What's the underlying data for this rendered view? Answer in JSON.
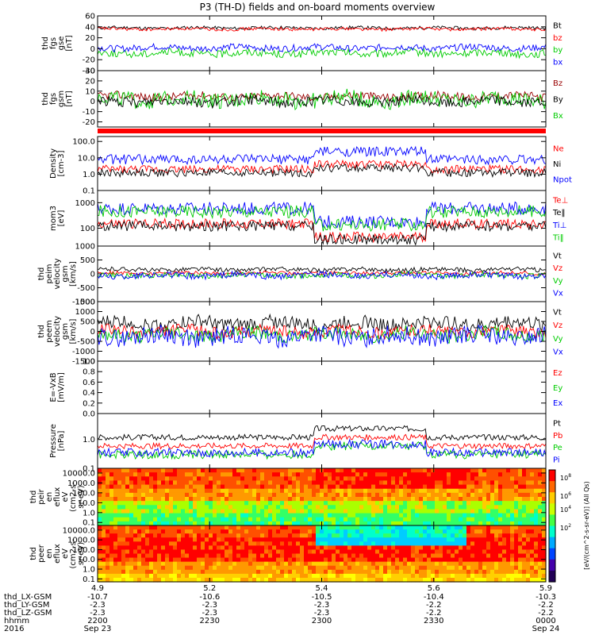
{
  "title": "P3 (TH-D) fields and on-board moments overview",
  "colors": {
    "black": "#000000",
    "red": "#ff0000",
    "green": "#00cc00",
    "blue": "#0000ff",
    "statusbar": "#ff0000"
  },
  "time_axis": {
    "xlim": [
      0,
      120
    ],
    "unit": "minutes after 2016-09-23 22:00"
  },
  "chart_data": [
    {
      "id": "p1",
      "type": "line",
      "ylabel": [
        "thd",
        "fgs",
        "gse",
        "[nT]"
      ],
      "ylim": [
        -40,
        60
      ],
      "yticks": [
        "60",
        "40",
        "20",
        "0",
        "-20",
        "-40"
      ],
      "ytick_vals": [
        60,
        40,
        20,
        0,
        -20,
        -40
      ],
      "series": [
        {
          "name": "Bt",
          "color": "#000000",
          "base": 38,
          "amp": 3
        },
        {
          "name": "bz",
          "color": "#ff0000",
          "base": 36,
          "amp": 3
        },
        {
          "name": "by",
          "color": "#00cc00",
          "base": -8,
          "amp": 7
        },
        {
          "name": "bx",
          "color": "#0000ff",
          "base": 2,
          "amp": 6
        }
      ],
      "legend": [
        "Bt",
        "bz",
        "by",
        "bx"
      ]
    },
    {
      "id": "p2",
      "type": "line",
      "ylabel": [
        "thd",
        "fgs",
        "gsm",
        "[nT]"
      ],
      "ylim": [
        -25,
        30
      ],
      "yticks": [
        "30",
        "20",
        "10",
        "0",
        "-10",
        "-20"
      ],
      "ytick_vals": [
        30,
        20,
        10,
        0,
        -10,
        -20
      ],
      "series": [
        {
          "name": "Bz",
          "color": "#990000",
          "base": 5,
          "amp": 4
        },
        {
          "name": "Bx",
          "color": "#00cc00",
          "base": 2,
          "amp": 8
        },
        {
          "name": "By",
          "color": "#000000",
          "base": 0,
          "amp": 5
        }
      ],
      "legend": [
        "Bz",
        "By",
        "Bx"
      ]
    },
    {
      "id": "p4",
      "type": "line",
      "ylabel": [
        "Density",
        "[cm-3]"
      ],
      "scale": "log",
      "ylim": [
        0.1,
        200
      ],
      "yticks": [
        "100.0",
        "10.0",
        "1.0",
        "0.1"
      ],
      "ytick_vals": [
        100,
        10,
        1,
        0.1
      ],
      "series": [
        {
          "name": "Ne",
          "color": "#ff0000",
          "base": 2,
          "amp": 0.25
        },
        {
          "name": "Ni",
          "color": "#000000",
          "base": 1.2,
          "amp": 0.25
        },
        {
          "name": "Npot",
          "color": "#0000ff",
          "base": 8,
          "amp": 0.3
        }
      ],
      "legend": [
        "Ne",
        "Ni",
        "Npot"
      ]
    },
    {
      "id": "p5",
      "type": "line",
      "ylabel": [
        "mom3",
        "[eV]"
      ],
      "scale": "log",
      "ylim": [
        20,
        3000
      ],
      "yticks": [
        "1000",
        "100"
      ],
      "ytick_vals": [
        1000,
        100
      ],
      "series": [
        {
          "name": "Te⊥",
          "color": "#ff0000",
          "base": 150,
          "amp": 0.2
        },
        {
          "name": "Te‖",
          "color": "#000000",
          "base": 120,
          "amp": 0.2
        },
        {
          "name": "Ti⊥",
          "color": "#0000ff",
          "base": 600,
          "amp": 0.25
        },
        {
          "name": "Ti‖",
          "color": "#00cc00",
          "base": 450,
          "amp": 0.25
        }
      ],
      "legend": [
        "Te⊥",
        "Te‖",
        "Ti⊥",
        "Ti‖"
      ]
    },
    {
      "id": "p6",
      "type": "line",
      "ylabel": [
        "thd",
        "peim",
        "velocity",
        "gsm",
        "[km/s]"
      ],
      "ylim": [
        -1000,
        1000
      ],
      "yticks": [
        "1000",
        "500",
        "0",
        "-500",
        "-1000"
      ],
      "ytick_vals": [
        1000,
        500,
        0,
        -500,
        -1000
      ],
      "series": [
        {
          "name": "Vt",
          "color": "#000000",
          "base": 150,
          "amp": 80
        },
        {
          "name": "Vz",
          "color": "#ff0000",
          "base": 30,
          "amp": 60
        },
        {
          "name": "Vy",
          "color": "#00cc00",
          "base": -50,
          "amp": 100
        },
        {
          "name": "Vx",
          "color": "#0000ff",
          "base": -60,
          "amp": 120
        }
      ],
      "legend": [
        "Vt",
        "Vz",
        "Vy",
        "Vx"
      ]
    },
    {
      "id": "p7",
      "type": "line",
      "ylabel": [
        "thd",
        "peem",
        "velocity",
        "gsm",
        "[km/s]"
      ],
      "ylim": [
        -1500,
        1500
      ],
      "yticks": [
        "1500",
        "1000",
        "500",
        "0",
        "-500",
        "-1000",
        "-1500"
      ],
      "ytick_vals": [
        1500,
        1000,
        500,
        0,
        -500,
        -1000,
        -1500
      ],
      "series": [
        {
          "name": "Vt",
          "color": "#000000",
          "base": 400,
          "amp": 350
        },
        {
          "name": "Vz",
          "color": "#ff0000",
          "base": 0,
          "amp": 300
        },
        {
          "name": "Vy",
          "color": "#00cc00",
          "base": -150,
          "amp": 350
        },
        {
          "name": "Vx",
          "color": "#0000ff",
          "base": -250,
          "amp": 450
        }
      ],
      "legend": [
        "Vt",
        "Vz",
        "Vy",
        "Vx"
      ]
    },
    {
      "id": "p8",
      "type": "line",
      "ylabel": [
        "E=-VxB",
        "[mV/m]"
      ],
      "ylim": [
        0,
        1
      ],
      "yticks": [
        "1.0",
        "0.8",
        "0.6",
        "0.4",
        "0.2",
        "0.0"
      ],
      "ytick_vals": [
        1,
        0.8,
        0.6,
        0.4,
        0.2,
        0
      ],
      "series": [],
      "legend": [
        "Ez",
        "Ey",
        "Ex"
      ]
    },
    {
      "id": "p9",
      "type": "line",
      "ylabel": [
        "Pressure",
        "[nPa]"
      ],
      "scale": "log",
      "ylim": [
        0.1,
        8
      ],
      "yticks": [
        "1.0",
        "0.1"
      ],
      "ytick_vals": [
        1,
        0.1
      ],
      "series": [
        {
          "name": "Pt",
          "color": "#000000",
          "base": 1.2,
          "amp": 0.1
        },
        {
          "name": "Pb",
          "color": "#ff0000",
          "base": 0.6,
          "amp": 0.1
        },
        {
          "name": "Pe",
          "color": "#00cc00",
          "base": 0.3,
          "amp": 0.15
        },
        {
          "name": "Pi",
          "color": "#0000ff",
          "base": 0.35,
          "amp": 0.15
        }
      ],
      "legend": [
        "Pt",
        "Pb",
        "Pe",
        "Pi"
      ]
    },
    {
      "id": "p10",
      "type": "heatmap",
      "ylabel": [
        "thd",
        "peir",
        "en",
        "eflux",
        "eV",
        "(cm2-s-",
        "sr-eV)"
      ],
      "scale": "log",
      "ylim": [
        0.05,
        30000
      ],
      "yticks": [
        "10000.0",
        "1000.0",
        "100.0",
        "10.0",
        "1.0",
        "0.1"
      ],
      "ytick_vals": [
        10000,
        1000,
        100,
        10,
        1,
        0.1
      ]
    },
    {
      "id": "p11",
      "type": "heatmap",
      "ylabel": [
        "thd",
        "peer",
        "en",
        "eflux",
        "eV",
        "(cm2-s-",
        "sr-eV)"
      ],
      "scale": "log",
      "ylim": [
        0.05,
        30000
      ],
      "yticks": [
        "10000.0",
        "1000.0",
        "100.0",
        "10.0",
        "1.0",
        "0.1"
      ],
      "ytick_vals": [
        10000,
        1000,
        100,
        10,
        1,
        0.1
      ]
    }
  ],
  "colorbar": {
    "label": "[eV/(cm^2-s-sr-eV)] (All Qs)",
    "ticks": [
      "10^8",
      "10^6",
      "10^4",
      "10^2"
    ]
  },
  "xaxis": {
    "rows": [
      {
        "label": "thd_LX-GSM",
        "values": [
          "-10.7",
          "-10.6",
          "-10.5",
          "-10.4",
          "-10.3"
        ]
      },
      {
        "label": "thd_LY-GSM",
        "values": [
          "-2.3",
          "-2.3",
          "-2.3",
          "-2.2",
          "-2.2"
        ]
      },
      {
        "label": "thd_LZ-GSM",
        "values": [
          "-2.3",
          "-2.3",
          "-2.3",
          "-2.2",
          "-2.2"
        ]
      },
      {
        "label": "hhmm",
        "values": [
          "2200",
          "2230",
          "2300",
          "2330",
          "0000"
        ]
      },
      {
        "label": "2016",
        "values": [
          "Sep 23",
          "",
          "",
          "",
          "Sep 24"
        ]
      }
    ],
    "top_values": [
      "4.9",
      "5.2",
      "5.4",
      "5.6",
      "5.9"
    ],
    "tick_minutes": [
      0,
      30,
      60,
      90,
      120
    ]
  }
}
